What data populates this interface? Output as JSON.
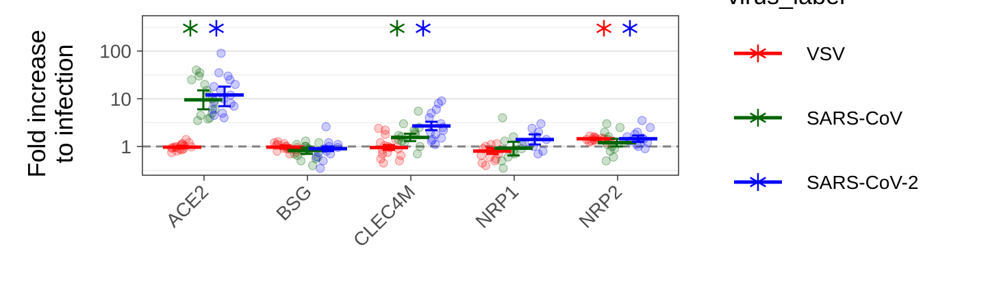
{
  "chart_data": {
    "type": "scatter",
    "title": "",
    "xlabel": "",
    "ylabel_lines": [
      "Fold increase",
      "to infection"
    ],
    "y_scale": "log10",
    "ylim": [
      0.25,
      550
    ],
    "y_ticks": [
      {
        "value": 1,
        "label": "1"
      },
      {
        "value": 10,
        "label": "10"
      },
      {
        "value": 100,
        "label": "100"
      }
    ],
    "reference_line": 1,
    "grid": true,
    "categories": [
      "ACE2",
      "BSG",
      "CLEC4M",
      "NRP1",
      "NRP2"
    ],
    "legend": {
      "title": "virus_label",
      "position": "right",
      "entries": [
        "VSV",
        "SARS-CoV",
        "SARS-CoV-2"
      ]
    },
    "significance_marker_y": 300,
    "series": [
      {
        "name": "VSV",
        "color": "#ff0000",
        "summary": [
          {
            "mean": 0.97,
            "lo": 0.92,
            "hi": 1.03
          },
          {
            "mean": 0.97,
            "lo": 0.9,
            "hi": 1.05
          },
          {
            "mean": 0.95,
            "lo": 0.85,
            "hi": 1.07
          },
          {
            "mean": 0.8,
            "lo": 0.7,
            "hi": 0.92
          },
          {
            "mean": 1.45,
            "lo": 1.38,
            "hi": 1.52
          }
        ],
        "points": [
          [
            0.85,
            0.9,
            0.95,
            1.0,
            1.05,
            1.1,
            0.92,
            0.98,
            1.02,
            0.88,
            0.8,
            1.2,
            1.4,
            0.75,
            1.15,
            0.95
          ],
          [
            0.7,
            0.8,
            0.9,
            1.0,
            1.1,
            1.2,
            0.85,
            0.95,
            1.05,
            1.15,
            0.75,
            1.25,
            0.92,
            1.0,
            0.88
          ],
          [
            0.45,
            0.55,
            0.65,
            0.75,
            0.85,
            0.95,
            1.05,
            1.2,
            1.4,
            1.8,
            2.2,
            2.4,
            0.5,
            0.7,
            0.9,
            1.0
          ],
          [
            0.4,
            0.5,
            0.6,
            0.7,
            0.8,
            0.9,
            1.0,
            1.1,
            0.45,
            0.65,
            0.85,
            1.15,
            0.55
          ],
          [
            1.2,
            1.3,
            1.4,
            1.5,
            1.6,
            1.45,
            1.35,
            1.55,
            1.65,
            1.25,
            1.5,
            1.4
          ]
        ],
        "significant": [
          false,
          false,
          false,
          false,
          true
        ]
      },
      {
        "name": "SARS-CoV",
        "color": "#006400",
        "summary": [
          {
            "mean": 9.5,
            "lo": 6.0,
            "hi": 15.0
          },
          {
            "mean": 0.82,
            "lo": 0.7,
            "hi": 0.95
          },
          {
            "mean": 1.55,
            "lo": 1.3,
            "hi": 1.85
          },
          {
            "mean": 0.92,
            "lo": 0.65,
            "hi": 1.25
          },
          {
            "mean": 1.2,
            "lo": 1.0,
            "hi": 1.45
          }
        ],
        "points": [
          [
            3.5,
            4.0,
            5.0,
            6.0,
            8.0,
            10.0,
            12.0,
            15.0,
            20.0,
            25.0,
            30.0,
            35.0,
            40.0,
            4.5,
            3.8
          ],
          [
            0.4,
            0.5,
            0.6,
            0.7,
            0.8,
            0.9,
            1.0,
            1.1,
            1.2,
            1.3,
            0.55,
            0.85,
            1.0,
            0.65
          ],
          [
            0.7,
            1.0,
            1.2,
            1.4,
            1.6,
            1.8,
            2.0,
            2.2,
            2.5,
            3.0,
            5.5,
            1.3,
            1.7
          ],
          [
            0.35,
            0.5,
            0.7,
            0.9,
            1.1,
            1.3,
            1.6,
            4.0,
            0.6,
            0.8
          ],
          [
            0.5,
            0.6,
            0.8,
            1.0,
            1.2,
            1.4,
            1.6,
            2.0,
            2.5,
            3.0,
            0.9,
            1.1
          ]
        ],
        "significant": [
          true,
          false,
          true,
          false,
          false
        ]
      },
      {
        "name": "SARS-CoV-2",
        "color": "#0000ff",
        "summary": [
          {
            "mean": 12.0,
            "lo": 7.0,
            "hi": 18.0
          },
          {
            "mean": 0.9,
            "lo": 0.8,
            "hi": 1.0
          },
          {
            "mean": 2.7,
            "lo": 2.2,
            "hi": 3.3
          },
          {
            "mean": 1.4,
            "lo": 1.1,
            "hi": 1.8
          },
          {
            "mean": 1.45,
            "lo": 1.25,
            "hi": 1.7
          }
        ],
        "points": [
          [
            4.0,
            5.0,
            6.0,
            8.0,
            10.0,
            12.0,
            15.0,
            20.0,
            25.0,
            30.0,
            35.0,
            90.0,
            4.5,
            7.0,
            9.0,
            18.0
          ],
          [
            0.35,
            0.5,
            0.6,
            0.7,
            0.8,
            0.9,
            1.0,
            1.1,
            1.2,
            2.6,
            0.75,
            0.95
          ],
          [
            1.1,
            1.3,
            1.5,
            1.8,
            2.0,
            2.5,
            3.0,
            4.0,
            5.0,
            6.0,
            8.0,
            9.0,
            1.4,
            2.2
          ],
          [
            0.7,
            0.8,
            1.0,
            1.2,
            1.4,
            1.6,
            2.0,
            2.4,
            3.0
          ],
          [
            0.9,
            1.0,
            1.1,
            1.2,
            1.4,
            1.6,
            1.8,
            2.0,
            2.5,
            3.5,
            1.3,
            1.5
          ]
        ],
        "significant": [
          true,
          false,
          true,
          false,
          true
        ]
      }
    ]
  }
}
